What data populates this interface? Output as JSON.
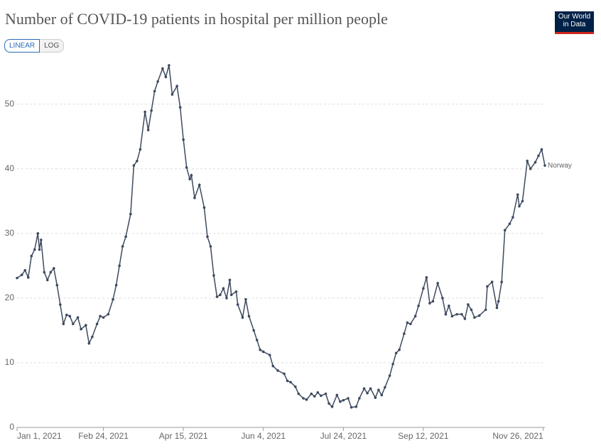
{
  "chart_data": {
    "type": "line",
    "title": "Number of COVID-19 patients in hospital per million people",
    "toggles": [
      "LINEAR",
      "LOG"
    ],
    "logo_lines": [
      "Our World",
      "in Data"
    ],
    "x": [
      "2021-01-01",
      "2021-01-04",
      "2021-01-06",
      "2021-01-08",
      "2021-01-10",
      "2021-01-12",
      "2021-01-14",
      "2021-01-15",
      "2021-01-16",
      "2021-01-18",
      "2021-01-20",
      "2021-01-22",
      "2021-01-24",
      "2021-01-26",
      "2021-01-28",
      "2021-01-30",
      "2021-02-01",
      "2021-02-03",
      "2021-02-05",
      "2021-02-08",
      "2021-02-10",
      "2021-02-13",
      "2021-02-15",
      "2021-02-17",
      "2021-02-20",
      "2021-02-22",
      "2021-02-24",
      "2021-02-27",
      "2021-03-02",
      "2021-03-04",
      "2021-03-06",
      "2021-03-08",
      "2021-03-10",
      "2021-03-13",
      "2021-03-15",
      "2021-03-17",
      "2021-03-19",
      "2021-03-22",
      "2021-03-24",
      "2021-03-26",
      "2021-03-28",
      "2021-03-30",
      "2021-04-02",
      "2021-04-04",
      "2021-04-06",
      "2021-04-08",
      "2021-04-11",
      "2021-04-13",
      "2021-04-15",
      "2021-04-17",
      "2021-04-19",
      "2021-04-20",
      "2021-04-22",
      "2021-04-25",
      "2021-04-28",
      "2021-04-30",
      "2021-05-02",
      "2021-05-04",
      "2021-05-06",
      "2021-05-08",
      "2021-05-10",
      "2021-05-12",
      "2021-05-14",
      "2021-05-15",
      "2021-05-18",
      "2021-05-19",
      "2021-05-22",
      "2021-05-24",
      "2021-05-26",
      "2021-05-29",
      "2021-05-31",
      "2021-06-02",
      "2021-06-04",
      "2021-06-08",
      "2021-06-10",
      "2021-06-13",
      "2021-06-17",
      "2021-06-19",
      "2021-06-21",
      "2021-06-24",
      "2021-06-26",
      "2021-06-29",
      "2021-07-01",
      "2021-07-04",
      "2021-07-06",
      "2021-07-08",
      "2021-07-10",
      "2021-07-13",
      "2021-07-15",
      "2021-07-17",
      "2021-07-20",
      "2021-07-22",
      "2021-07-24",
      "2021-07-27",
      "2021-07-29",
      "2021-08-01",
      "2021-08-03",
      "2021-08-06",
      "2021-08-08",
      "2021-08-10",
      "2021-08-13",
      "2021-08-15",
      "2021-08-17",
      "2021-08-19",
      "2021-08-22",
      "2021-08-24",
      "2021-08-26",
      "2021-08-28",
      "2021-08-31",
      "2021-09-02",
      "2021-09-04",
      "2021-09-07",
      "2021-09-09",
      "2021-09-12",
      "2021-09-14",
      "2021-09-16",
      "2021-09-18",
      "2021-09-21",
      "2021-09-24",
      "2021-09-26",
      "2021-09-28",
      "2021-09-30",
      "2021-10-03",
      "2021-10-06",
      "2021-10-08",
      "2021-10-10",
      "2021-10-12",
      "2021-10-14",
      "2021-10-17",
      "2021-10-21",
      "2021-10-22",
      "2021-10-25",
      "2021-10-28",
      "2021-10-29",
      "2021-10-31",
      "2021-11-02",
      "2021-11-05",
      "2021-11-07",
      "2021-11-10",
      "2021-11-11",
      "2021-11-13",
      "2021-11-16",
      "2021-11-18",
      "2021-11-21",
      "2021-11-23",
      "2021-11-25",
      "2021-11-27"
    ],
    "series": [
      {
        "name": "Norway",
        "color": "#3d4a5e",
        "values": [
          23.1,
          23.6,
          24.3,
          23.2,
          26.5,
          27.5,
          30,
          27.5,
          29,
          24,
          22.8,
          24,
          24.6,
          22,
          19,
          16,
          17.4,
          17.2,
          16,
          17,
          15.2,
          15.8,
          13,
          14,
          16,
          17.2,
          17,
          17.5,
          19.8,
          22,
          25,
          28,
          29.5,
          33,
          40.5,
          41.2,
          43,
          48.8,
          46,
          49,
          52,
          53.5,
          55.5,
          54.2,
          56,
          51.5,
          52.8,
          49.5,
          44.5,
          40.2,
          38.4,
          39,
          35.5,
          37.5,
          34,
          29.5,
          28,
          23.5,
          20.2,
          20.5,
          21.5,
          20,
          22.8,
          20.5,
          21,
          19,
          17,
          19.8,
          17.2,
          15,
          13.5,
          12,
          11.7,
          11.2,
          9.5,
          8.8,
          8.3,
          7.2,
          7,
          6.3,
          5.2,
          4.5,
          4.3,
          5.2,
          4.8,
          5.4,
          4.9,
          5.2,
          3.7,
          3.2,
          5,
          4,
          4.2,
          4.5,
          3.1,
          3.2,
          4.5,
          6,
          5.3,
          6,
          4.6,
          5.8,
          5,
          6.2,
          8,
          9.8,
          11.5,
          12,
          14.5,
          16.2,
          16,
          17.2,
          18.8,
          21.5,
          23.2,
          19.2,
          19.5,
          22.3,
          20,
          17.5,
          18.8,
          17.2,
          17.5,
          17.5,
          16.8,
          19,
          18.2,
          17,
          17.3,
          18.2,
          21.8,
          22.5,
          18.5,
          19.5,
          22.5,
          30.5,
          31.5,
          32.5,
          36,
          34.2,
          35,
          41.2,
          40,
          41,
          42,
          43,
          40.5
        ]
      }
    ],
    "xlim": [
      "2021-01-01",
      "2021-11-27"
    ],
    "xticks": [
      {
        "value": "2021-01-01",
        "label": "Jan 1, 2021"
      },
      {
        "value": "2021-02-24",
        "label": "Feb 24, 2021"
      },
      {
        "value": "2021-04-15",
        "label": "Apr 15, 2021"
      },
      {
        "value": "2021-06-04",
        "label": "Jun 4, 2021"
      },
      {
        "value": "2021-07-24",
        "label": "Jul 24, 2021"
      },
      {
        "value": "2021-09-12",
        "label": "Sep 12, 2021"
      },
      {
        "value": "2021-11-26",
        "label": "Nov 26, 2021"
      }
    ],
    "ylim": [
      0,
      56
    ],
    "yticks": [
      0,
      10,
      20,
      30,
      40,
      50
    ],
    "grid": true
  }
}
